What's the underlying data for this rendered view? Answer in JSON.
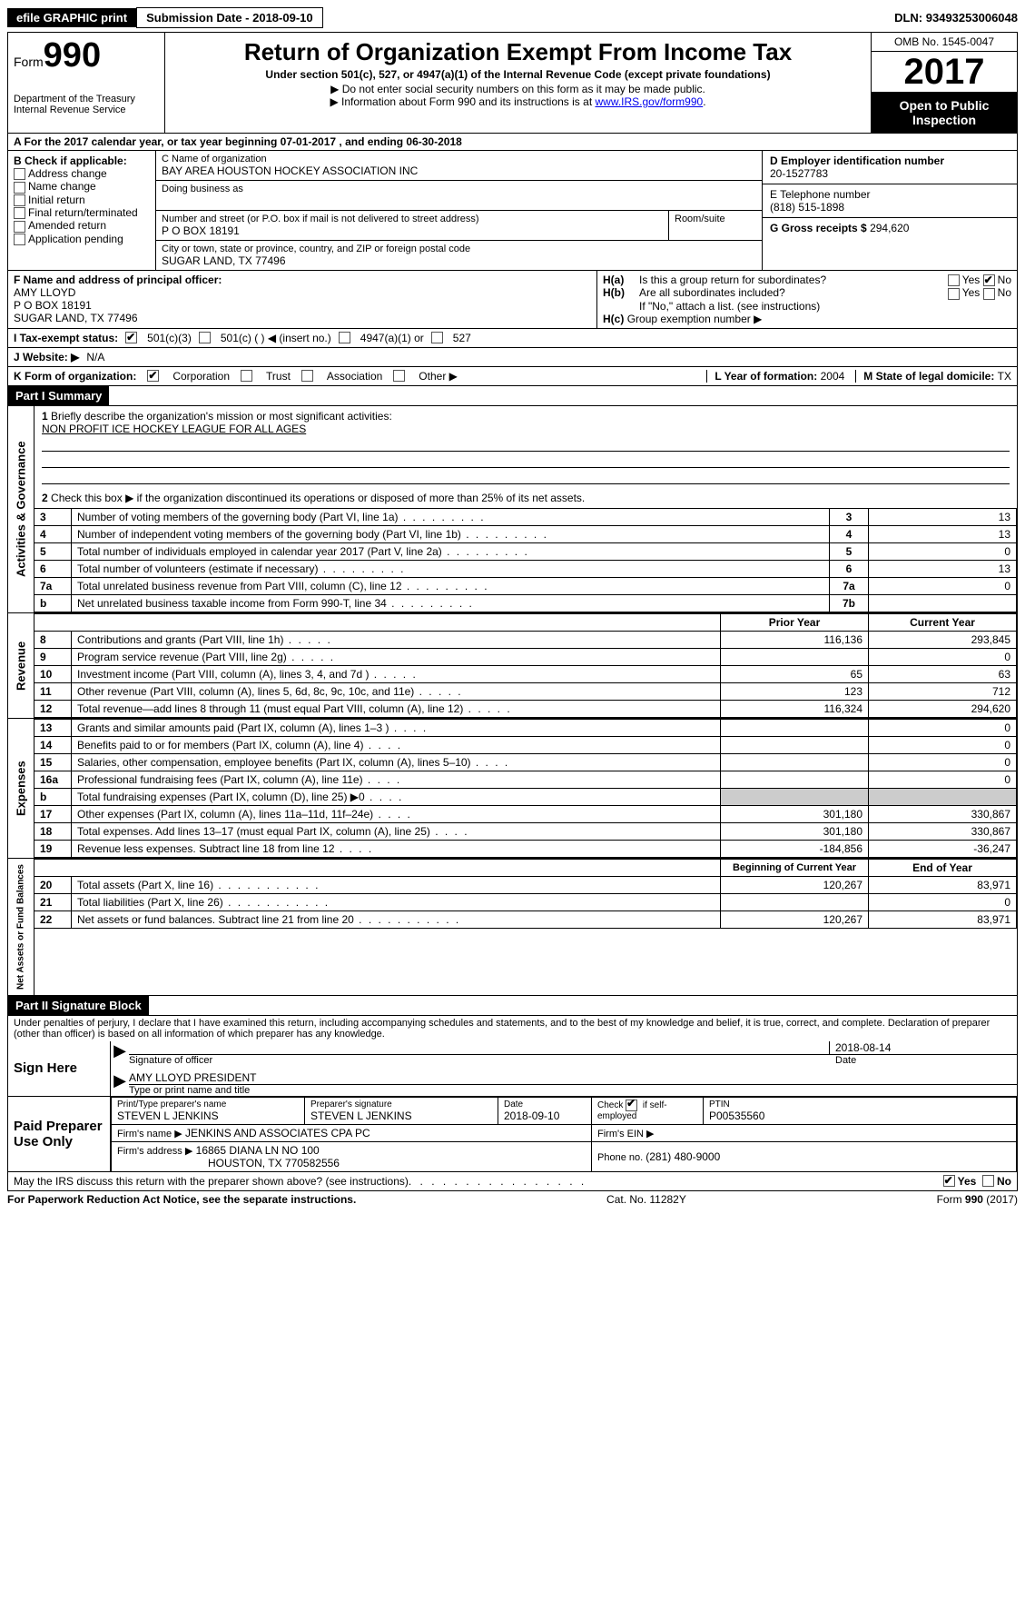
{
  "topbar": {
    "efile": "efile GRAPHIC print",
    "subdate_label": "Submission Date - ",
    "subdate": "2018-09-10",
    "dln_label": "DLN: ",
    "dln": "93493253006048"
  },
  "header": {
    "form_label": "Form",
    "form_num": "990",
    "dept": "Department of the Treasury\nInternal Revenue Service",
    "title": "Return of Organization Exempt From Income Tax",
    "subtitle": "Under section 501(c), 527, or 4947(a)(1) of the Internal Revenue Code (except private foundations)",
    "note1": "Do not enter social security numbers on this form as it may be made public.",
    "note2_pre": "Information about Form 990 and its instructions is at ",
    "note2_link": "www.IRS.gov/form990",
    "omb": "OMB No. 1545-0047",
    "year": "2017",
    "open": "Open to Public Inspection"
  },
  "rowA": {
    "text_pre": "A  For the 2017 calendar year, or tax year beginning ",
    "begin": "07-01-2017",
    "mid": "  , and ending ",
    "end": "06-30-2018"
  },
  "B": {
    "label": "B Check if applicable:",
    "opts": [
      "Address change",
      "Name change",
      "Initial return",
      "Final return/terminated",
      "Amended return",
      "Application pending"
    ]
  },
  "C": {
    "name_label": "C Name of organization",
    "name": "BAY AREA HOUSTON HOCKEY ASSOCIATION INC",
    "dba_label": "Doing business as",
    "addr_label": "Number and street (or P.O. box if mail is not delivered to street address)",
    "room_label": "Room/suite",
    "addr": "P O BOX 18191",
    "city_label": "City or town, state or province, country, and ZIP or foreign postal code",
    "city": "SUGAR LAND, TX  77496"
  },
  "D": {
    "label": "D Employer identification number",
    "val": "20-1527783"
  },
  "E": {
    "label": "E Telephone number",
    "val": "(818) 515-1898"
  },
  "G": {
    "label": "G Gross receipts $ ",
    "val": "294,620"
  },
  "F": {
    "label": "F  Name and address of principal officer:",
    "name": "AMY LLOYD",
    "addr1": "P O BOX 18191",
    "addr2": "SUGAR LAND, TX  77496"
  },
  "H": {
    "a": "Is this a group return for subordinates?",
    "b": "Are all subordinates included?",
    "b_note": "If \"No,\" attach a list. (see instructions)",
    "c": "Group exemption number ▶",
    "a_checked": "No"
  },
  "I": {
    "label": "I  Tax-exempt status:",
    "opts": [
      "501(c)(3)",
      "501(c) (  ) ◀ (insert no.)",
      "4947(a)(1) or",
      "527"
    ],
    "checked": 0
  },
  "J": {
    "label": "J  Website: ▶",
    "val": "N/A"
  },
  "K": {
    "label": "K Form of organization:",
    "opts": [
      "Corporation",
      "Trust",
      "Association",
      "Other ▶"
    ],
    "checked": 0,
    "L_label": "L Year of formation: ",
    "L_val": "2004",
    "M_label": "M State of legal domicile: ",
    "M_val": "TX"
  },
  "partI": {
    "title": "Part I    Summary",
    "side1": "Activities & Governance",
    "side2": "Revenue",
    "side3": "Expenses",
    "side4": "Net Assets or Fund Balances",
    "q1": "Briefly describe the organization's mission or most significant activities:",
    "mission": "NON PROFIT ICE HOCKEY LEAGUE FOR ALL AGES",
    "q2": "Check this box ▶         if the organization discontinued its operations or disposed of more than 25% of its net assets.",
    "lines_gov": [
      {
        "num": "3",
        "desc": "Number of voting members of the governing body (Part VI, line 1a)",
        "box": "3",
        "val": "13"
      },
      {
        "num": "4",
        "desc": "Number of independent voting members of the governing body (Part VI, line 1b)",
        "box": "4",
        "val": "13"
      },
      {
        "num": "5",
        "desc": "Total number of individuals employed in calendar year 2017 (Part V, line 2a)",
        "box": "5",
        "val": "0"
      },
      {
        "num": "6",
        "desc": "Total number of volunteers (estimate if necessary)",
        "box": "6",
        "val": "13"
      },
      {
        "num": "7a",
        "desc": "Total unrelated business revenue from Part VIII, column (C), line 12",
        "box": "7a",
        "val": "0"
      },
      {
        "num": "b",
        "desc": "Net unrelated business taxable income from Form 990-T, line 34",
        "box": "7b",
        "val": ""
      }
    ],
    "hdr_prior": "Prior Year",
    "hdr_curr": "Current Year",
    "lines_rev": [
      {
        "num": "8",
        "desc": "Contributions and grants (Part VIII, line 1h)",
        "p": "116,136",
        "c": "293,845"
      },
      {
        "num": "9",
        "desc": "Program service revenue (Part VIII, line 2g)",
        "p": "",
        "c": "0"
      },
      {
        "num": "10",
        "desc": "Investment income (Part VIII, column (A), lines 3, 4, and 7d )",
        "p": "65",
        "c": "63"
      },
      {
        "num": "11",
        "desc": "Other revenue (Part VIII, column (A), lines 5, 6d, 8c, 9c, 10c, and 11e)",
        "p": "123",
        "c": "712"
      },
      {
        "num": "12",
        "desc": "Total revenue—add lines 8 through 11 (must equal Part VIII, column (A), line 12)",
        "p": "116,324",
        "c": "294,620"
      }
    ],
    "lines_exp": [
      {
        "num": "13",
        "desc": "Grants and similar amounts paid (Part IX, column (A), lines 1–3 )",
        "p": "",
        "c": "0"
      },
      {
        "num": "14",
        "desc": "Benefits paid to or for members (Part IX, column (A), line 4)",
        "p": "",
        "c": "0"
      },
      {
        "num": "15",
        "desc": "Salaries, other compensation, employee benefits (Part IX, column (A), lines 5–10)",
        "p": "",
        "c": "0"
      },
      {
        "num": "16a",
        "desc": "Professional fundraising fees (Part IX, column (A), line 11e)",
        "p": "",
        "c": "0"
      },
      {
        "num": "b",
        "desc": "Total fundraising expenses (Part IX, column (D), line 25) ▶0",
        "p": "shade",
        "c": "shade"
      },
      {
        "num": "17",
        "desc": "Other expenses (Part IX, column (A), lines 11a–11d, 11f–24e)",
        "p": "301,180",
        "c": "330,867"
      },
      {
        "num": "18",
        "desc": "Total expenses. Add lines 13–17 (must equal Part IX, column (A), line 25)",
        "p": "301,180",
        "c": "330,867"
      },
      {
        "num": "19",
        "desc": "Revenue less expenses. Subtract line 18 from line 12",
        "p": "-184,856",
        "c": "-36,247"
      }
    ],
    "hdr_beg": "Beginning of Current Year",
    "hdr_end": "End of Year",
    "lines_net": [
      {
        "num": "20",
        "desc": "Total assets (Part X, line 16)",
        "p": "120,267",
        "c": "83,971"
      },
      {
        "num": "21",
        "desc": "Total liabilities (Part X, line 26)",
        "p": "",
        "c": "0"
      },
      {
        "num": "22",
        "desc": "Net assets or fund balances. Subtract line 21 from line 20",
        "p": "120,267",
        "c": "83,971"
      }
    ]
  },
  "partII": {
    "title": "Part II    Signature Block",
    "perjury": "Under penalties of perjury, I declare that I have examined this return, including accompanying schedules and statements, and to the best of my knowledge and belief, it is true, correct, and complete. Declaration of preparer (other than officer) is based on all information of which preparer has any knowledge.",
    "sign_here": "Sign Here",
    "sig_date": "2018-08-14",
    "sig_label": "Signature of officer",
    "date_label": "Date",
    "officer_name": "AMY LLOYD PRESIDENT",
    "officer_label": "Type or print name and title",
    "paid": "Paid Preparer Use Only",
    "prep_name_label": "Print/Type preparer's name",
    "prep_name": "STEVEN L JENKINS",
    "prep_sig_label": "Preparer's signature",
    "prep_sig": "STEVEN L JENKINS",
    "prep_date_label": "Date",
    "prep_date": "2018-09-10",
    "self_emp": "Check         if self-employed",
    "ptin_label": "PTIN",
    "ptin": "P00535560",
    "firm_name_label": "Firm's name      ▶",
    "firm_name": "JENKINS AND ASSOCIATES CPA PC",
    "firm_ein_label": "Firm's EIN ▶",
    "firm_addr_label": "Firm's address ▶",
    "firm_addr": "16865 DIANA LN NO 100",
    "firm_city": "HOUSTON, TX  770582556",
    "phone_label": "Phone no. ",
    "phone": "(281) 480-9000",
    "discuss": "May the IRS discuss this return with the preparer shown above? (see instructions)",
    "discuss_yes": "Yes",
    "discuss_no": "No"
  },
  "footer": {
    "left": "For Paperwork Reduction Act Notice, see the separate instructions.",
    "mid": "Cat. No. 11282Y",
    "right_pre": "Form ",
    "right_bold": "990",
    "right_post": " (2017)"
  }
}
